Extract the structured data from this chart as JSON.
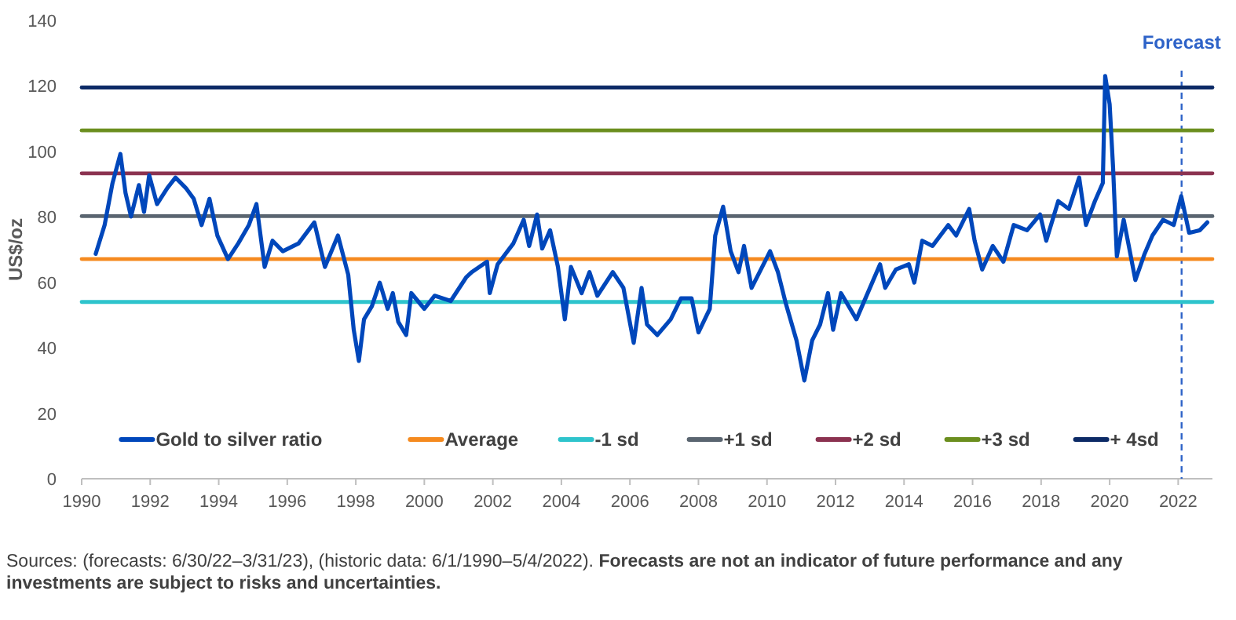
{
  "chart_data": {
    "type": "line",
    "ylabel": "US$/oz",
    "xlim": [
      1990,
      2023
    ],
    "xticks": [
      1990,
      1992,
      1994,
      1996,
      1998,
      2000,
      2002,
      2004,
      2006,
      2008,
      2010,
      2012,
      2014,
      2016,
      2018,
      2020,
      2022
    ],
    "ylim": [
      0,
      140
    ],
    "yticks": [
      0,
      20,
      40,
      60,
      80,
      100,
      120,
      140
    ],
    "grid": false,
    "legend": "bottom",
    "line_style": "solid",
    "marker": "none",
    "series": [
      {
        "name": "Gold to silver ratio",
        "color": "#0047bb",
        "x": [
          1990.41,
          1990.67,
          1990.9,
          1991.13,
          1991.28,
          1991.44,
          1991.67,
          1991.82,
          1991.97,
          1992.2,
          1992.5,
          1992.74,
          1993.04,
          1993.27,
          1993.5,
          1993.73,
          1993.96,
          1994.27,
          1994.57,
          1994.88,
          1995.1,
          1995.34,
          1995.57,
          1995.87,
          1996.33,
          1996.79,
          1997.1,
          1997.48,
          1997.78,
          1997.94,
          1998.09,
          1998.24,
          1998.47,
          1998.7,
          1998.93,
          1999.08,
          1999.24,
          1999.47,
          1999.62,
          2000,
          2000.3,
          2000.77,
          2001.22,
          2001.38,
          2001.83,
          2001.91,
          2002.14,
          2002.6,
          2002.9,
          2003.06,
          2003.29,
          2003.44,
          2003.67,
          2003.9,
          2004.1,
          2004.28,
          2004.59,
          2004.82,
          2005.05,
          2005.5,
          2005.81,
          2006.11,
          2006.34,
          2006.5,
          2006.8,
          2007.19,
          2007.49,
          2007.8,
          2008,
          2008.33,
          2008.49,
          2008.72,
          2008.94,
          2009.17,
          2009.33,
          2009.55,
          2009.86,
          2010.09,
          2010.32,
          2010.55,
          2010.86,
          2011.09,
          2011.32,
          2011.55,
          2011.78,
          2011.93,
          2012.16,
          2012.61,
          2013.07,
          2013.3,
          2013.45,
          2013.76,
          2014.14,
          2014.3,
          2014.53,
          2014.83,
          2015.29,
          2015.52,
          2015.9,
          2016.06,
          2016.28,
          2016.59,
          2016.9,
          2017.2,
          2017.59,
          2017.97,
          2018.15,
          2018.5,
          2018.81,
          2019.11,
          2019.31,
          2019.57,
          2019.8,
          2019.87,
          2020,
          2020.1,
          2020.21,
          2020.41,
          2020.56,
          2020.75,
          2021.02,
          2021.25,
          2021.56,
          2021.87,
          2022.09,
          2022.32,
          2022.63,
          2022.85
        ],
        "values": [
          68.7,
          77.5,
          90.3,
          99.2,
          87.3,
          80.1,
          89.7,
          81.5,
          92.7,
          83.9,
          88.8,
          92,
          88.8,
          85.5,
          77.5,
          85.5,
          74.3,
          67.1,
          71.9,
          77.5,
          83.9,
          64.7,
          72.7,
          69.5,
          71.9,
          78.3,
          64.7,
          74.3,
          62.3,
          45.5,
          36,
          48.7,
          52.7,
          59.9,
          51.9,
          56.7,
          47.9,
          43.9,
          56.7,
          51.9,
          55.9,
          54.3,
          61.5,
          63.1,
          66.3,
          56.7,
          65.5,
          71.9,
          79.1,
          71.1,
          80.7,
          70.3,
          75.9,
          64.7,
          48.7,
          64.7,
          56.7,
          63.1,
          55.9,
          63.1,
          58.3,
          41.5,
          58.3,
          47.1,
          43.9,
          48.7,
          55.1,
          55.1,
          44.7,
          51.9,
          74.3,
          83.1,
          69.5,
          63.1,
          71.1,
          58.3,
          64.7,
          69.5,
          63.1,
          53.5,
          42.3,
          30,
          42.3,
          47.1,
          56.7,
          45.5,
          56.7,
          48.7,
          59.9,
          65.5,
          58.3,
          63.9,
          65.5,
          59.9,
          72.7,
          71.1,
          77.5,
          74.3,
          82.4,
          72.7,
          63.9,
          71.1,
          66.3,
          77.5,
          75.9,
          80.7,
          72.7,
          84.8,
          82.4,
          92,
          77.5,
          84.8,
          90.3,
          123,
          114.4,
          95.1,
          67.9,
          79.1,
          71.1,
          60.7,
          68.7,
          74.3,
          79.1,
          77.5,
          86.3,
          75.1,
          75.9,
          78.3
        ]
      },
      {
        "name": "Average",
        "color": "#f58a1f",
        "x": [
          1990,
          2023
        ],
        "values": [
          67.1,
          67.1
        ]
      },
      {
        "name": "-1 sd",
        "color": "#2ec4cc",
        "x": [
          1990,
          2023
        ],
        "values": [
          54,
          54
        ]
      },
      {
        "name": "+1 sd",
        "color": "#5a6570",
        "x": [
          1990,
          2023
        ],
        "values": [
          80.2,
          80.2
        ]
      },
      {
        "name": "+2 sd",
        "color": "#8b3250",
        "x": [
          1990,
          2023
        ],
        "values": [
          93.3,
          93.3
        ]
      },
      {
        "name": "+3 sd",
        "color": "#6b8e1e",
        "x": [
          1990,
          2023
        ],
        "values": [
          106.4,
          106.4
        ]
      },
      {
        "name": "+ 4sd",
        "color": "#0c2a66",
        "x": [
          1990,
          2023
        ],
        "values": [
          119.5,
          119.5
        ]
      }
    ],
    "ref_lines": [
      {
        "axis": "x",
        "value": 2022.1,
        "label": "Forecast",
        "color": "#2e63c8",
        "line_style": "dashed"
      }
    ],
    "annotations": [
      "Sources: (forecasts: 6/30/22–3/31/23), (historic data: 6/1/1990–5/4/2022).",
      "Forecasts are not an indicator of future performance and any investments are subject to risks and uncertainties."
    ]
  }
}
